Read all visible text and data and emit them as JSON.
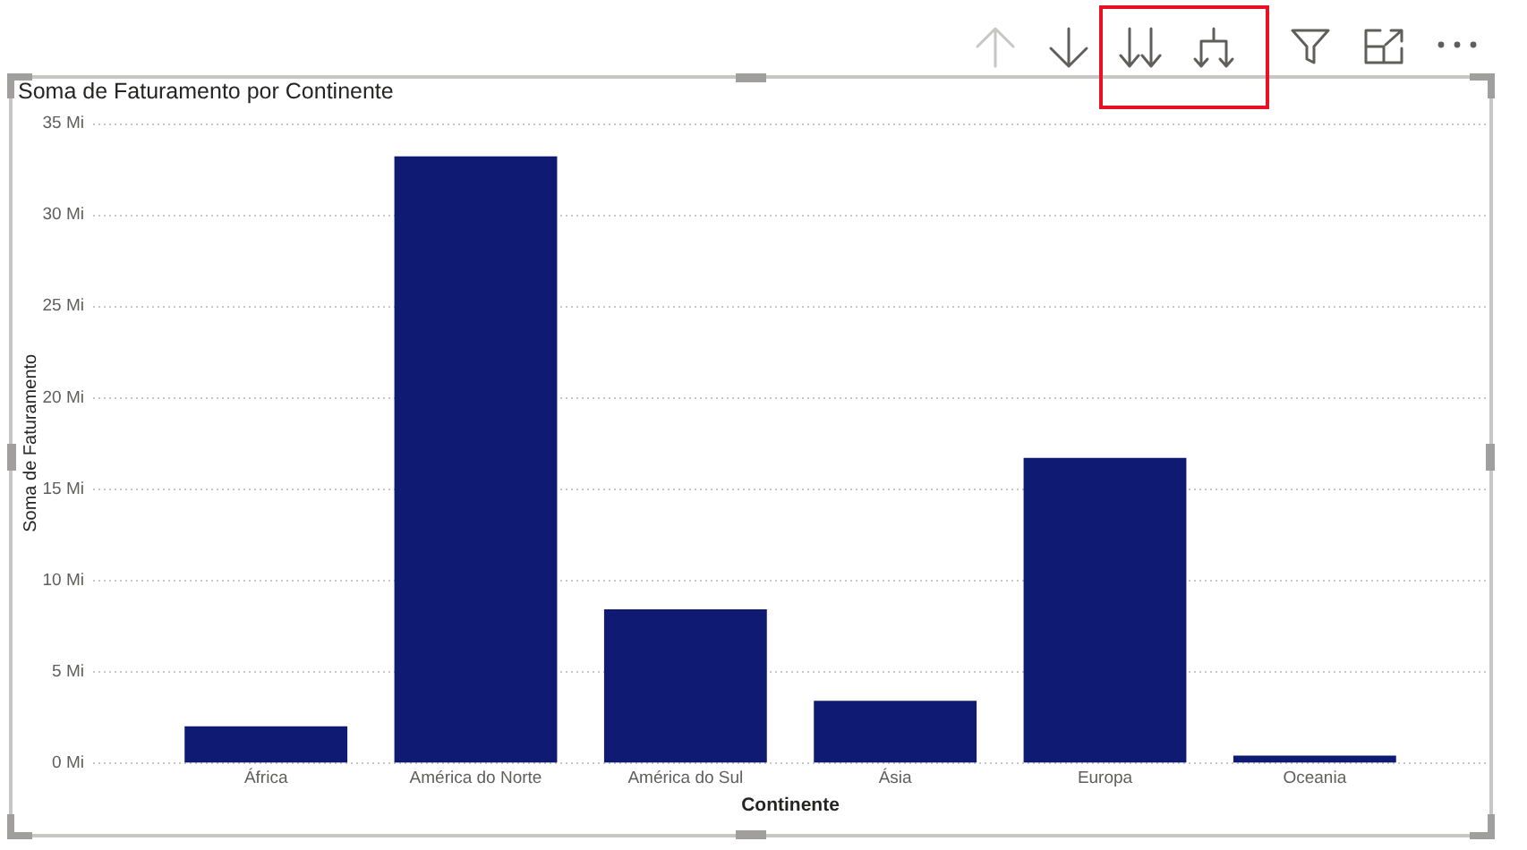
{
  "chart_data": {
    "type": "bar",
    "title": "Soma de Faturamento por Continente",
    "xlabel": "Continente",
    "ylabel": "Soma de Faturamento",
    "categories": [
      "África",
      "América do Norte",
      "América do Sul",
      "Ásia",
      "Europa",
      "Oceania"
    ],
    "values": [
      2,
      33.2,
      8.4,
      3.4,
      16.7,
      0.4
    ],
    "color": "#0f1a73",
    "ylim": [
      0,
      35
    ],
    "yticks": [
      {
        "value": 0,
        "label": "0 Mi"
      },
      {
        "value": 5,
        "label": "5 Mi"
      },
      {
        "value": 10,
        "label": "10 Mi"
      },
      {
        "value": 15,
        "label": "15 Mi"
      },
      {
        "value": 20,
        "label": "20 Mi"
      },
      {
        "value": 25,
        "label": "25 Mi"
      },
      {
        "value": 30,
        "label": "30 Mi"
      },
      {
        "value": 35,
        "label": "35 Mi"
      }
    ],
    "grid": "y"
  }
}
